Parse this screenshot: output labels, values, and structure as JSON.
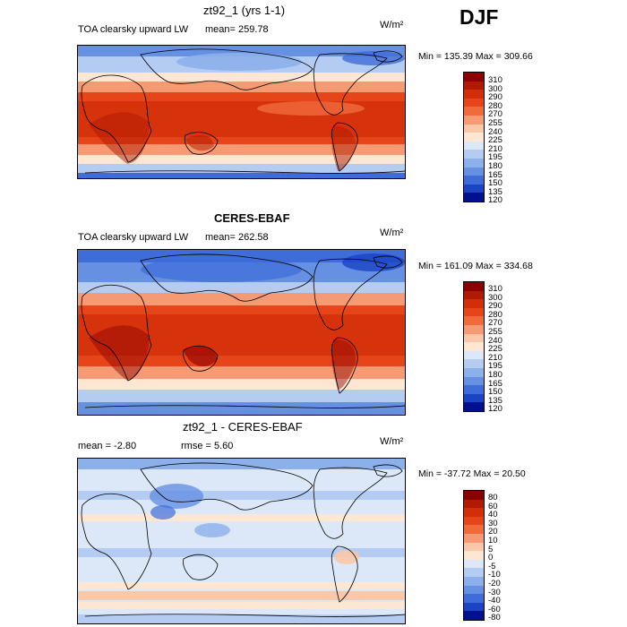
{
  "season": "DJF",
  "panels": [
    {
      "title": "zt92_1 (yrs 1-1)",
      "left": "TOA clearsky upward LW",
      "stat": "mean=  259.78",
      "stat2": "",
      "unit": "W/m²",
      "minmax": "Min = 135.39 Max = 309.66",
      "levels": [
        "310",
        "300",
        "290",
        "280",
        "270",
        "255",
        "240",
        "225",
        "210",
        "195",
        "180",
        "165",
        "150",
        "135",
        "120"
      ]
    },
    {
      "title": "CERES-EBAF",
      "left": "TOA clearsky upward LW",
      "stat": "mean=  262.58",
      "stat2": "",
      "unit": "W/m²",
      "minmax": "Min = 161.09 Max = 334.68",
      "levels": [
        "310",
        "300",
        "290",
        "280",
        "270",
        "255",
        "240",
        "225",
        "210",
        "195",
        "180",
        "165",
        "150",
        "135",
        "120"
      ]
    },
    {
      "title": "zt92_1 - CERES-EBAF",
      "left": "mean =   -2.80",
      "stat": "rmse =    5.60",
      "stat2": "",
      "unit": "W/m²",
      "minmax": "Min = -37.72 Max =  20.50",
      "levels": [
        "80",
        "60",
        "40",
        "30",
        "20",
        "10",
        "5",
        "0",
        "-5",
        "-10",
        "-20",
        "-30",
        "-40",
        "-60",
        "-80"
      ]
    }
  ],
  "colors": {
    "abs": [
      "#8b0000",
      "#b01a00",
      "#d22e0a",
      "#e6451a",
      "#f06a3c",
      "#f59a72",
      "#f9c8a8",
      "#fde6d2",
      "#dce8f8",
      "#b4ccf2",
      "#8cb0ea",
      "#6690e2",
      "#3e6cd8",
      "#1a44c4",
      "#00108f"
    ],
    "diff": [
      "#8b0000",
      "#b01a00",
      "#d22e0a",
      "#e6451a",
      "#f06a3c",
      "#f59a72",
      "#f9c8a8",
      "#fde6d2",
      "#dce8f8",
      "#b4ccf2",
      "#8cb0ea",
      "#6690e2",
      "#3e6cd8",
      "#1a44c4",
      "#00108f"
    ]
  }
}
